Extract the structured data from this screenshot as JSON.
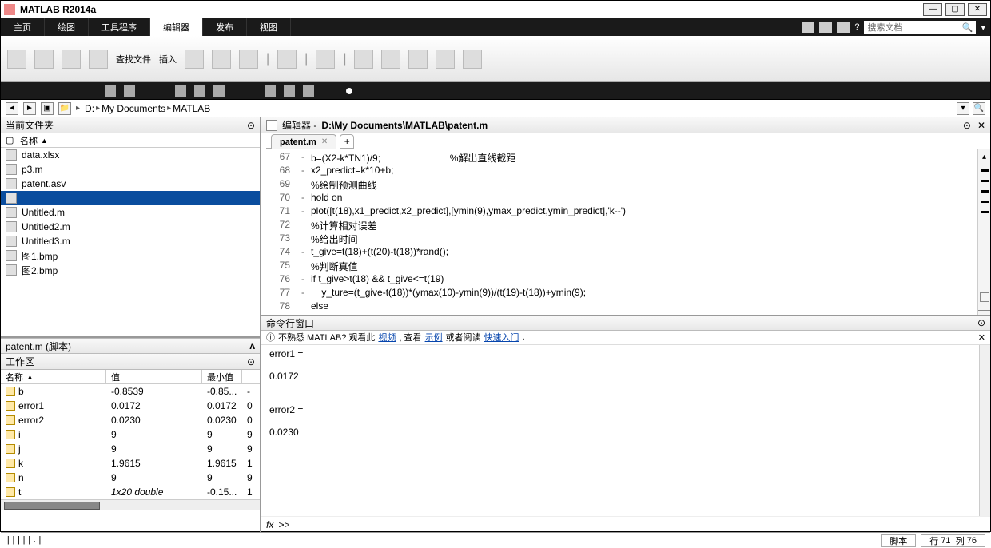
{
  "window": {
    "title": "MATLAB R2014a"
  },
  "ribbon": {
    "tabs": [
      "主页",
      "绘图",
      "工具程序",
      "编辑器",
      "发布",
      "视图"
    ],
    "active_index": 3,
    "search_placeholder": "搜索文档",
    "btn_find": "查找文件",
    "btn_insert": "插入"
  },
  "address": {
    "root": "D:",
    "crumbs": [
      "My Documents",
      "MATLAB"
    ]
  },
  "current_folder": {
    "title": "当前文件夹",
    "col_name": "名称",
    "files": [
      {
        "name": "data.xlsx"
      },
      {
        "name": "p3.m"
      },
      {
        "name": "patent.asv"
      },
      {
        "name": ""
      },
      {
        "name": "Untitled.m"
      },
      {
        "name": "Untitled2.m"
      },
      {
        "name": "Untitled3.m"
      },
      {
        "name": "图1.bmp"
      },
      {
        "name": "图2.bmp"
      }
    ],
    "selected_index": 3
  },
  "detail": {
    "title": "patent.m (脚本)"
  },
  "workspace": {
    "title": "工作区",
    "col_name": "名称",
    "col_value": "值",
    "col_min": "最小值",
    "vars": [
      {
        "name": "b",
        "value": "-0.8539",
        "min": "-0.85...",
        "ext": "-"
      },
      {
        "name": "error1",
        "value": "0.0172",
        "min": "0.0172",
        "ext": "0"
      },
      {
        "name": "error2",
        "value": "0.0230",
        "min": "0.0230",
        "ext": "0"
      },
      {
        "name": "i",
        "value": "9",
        "min": "9",
        "ext": "9"
      },
      {
        "name": "j",
        "value": "9",
        "min": "9",
        "ext": "9"
      },
      {
        "name": "k",
        "value": "1.9615",
        "min": "1.9615",
        "ext": "1"
      },
      {
        "name": "n",
        "value": "9",
        "min": "9",
        "ext": "9"
      },
      {
        "name": "t",
        "value": "1x20 double",
        "min": "-0.15...",
        "ext": "1"
      }
    ]
  },
  "editor": {
    "title_prefix": "编辑器 - ",
    "path": "D:\\My Documents\\MATLAB\\patent.m",
    "tab_name": "patent.m",
    "lines": [
      {
        "n": 67,
        "dash": "-",
        "code": "b=(X2-k*TN1)/9;                          %解出直线截距"
      },
      {
        "n": 68,
        "dash": "-",
        "code": "x2_predict=k*10+b;"
      },
      {
        "n": 69,
        "dash": "",
        "code": "%绘制预测曲线"
      },
      {
        "n": 70,
        "dash": "-",
        "code": "hold on"
      },
      {
        "n": 71,
        "dash": "-",
        "code": "plot([t(18),x1_predict,x2_predict],[ymin(9),ymax_predict,ymin_predict],'k--')"
      },
      {
        "n": 72,
        "dash": "",
        "code": "%计算相对误差"
      },
      {
        "n": 73,
        "dash": "",
        "code": "%给出时间"
      },
      {
        "n": 74,
        "dash": "-",
        "code": "t_give=t(18)+(t(20)-t(18))*rand();"
      },
      {
        "n": 75,
        "dash": "",
        "code": "%判断真值"
      },
      {
        "n": 76,
        "dash": "-",
        "code": "if t_give>t(18) && t_give<=t(19)"
      },
      {
        "n": 77,
        "dash": "-",
        "code": "    y_ture=(t_give-t(18))*(ymax(10)-ymin(9))/(t(19)-t(18))+ymin(9);"
      },
      {
        "n": 78,
        "dash": "",
        "code": "else"
      }
    ]
  },
  "command": {
    "title": "命令行窗口",
    "banner_pre": "不熟悉 MATLAB? 观看此",
    "banner_link1": "视频",
    "banner_mid": ", 查看",
    "banner_link2": "示例",
    "banner_mid2": "或者阅读",
    "banner_link3": "快速入门",
    "banner_end": ".",
    "output": [
      "error1 =",
      "",
      "    0.0172",
      "",
      "",
      "error2 =",
      "",
      "    0.0230"
    ],
    "prompt_fx": "fx",
    "prompt": ">>"
  },
  "status": {
    "left": "|||||.|",
    "type": "脚本",
    "line_label": "行",
    "line": "71",
    "col_label": "列",
    "col": "76"
  }
}
